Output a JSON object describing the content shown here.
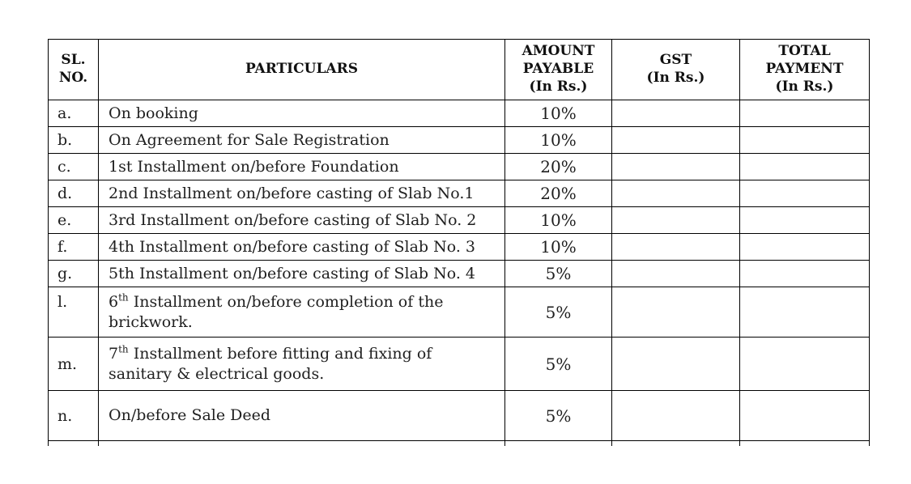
{
  "document": {
    "background_color": "#ffffff",
    "text_color": "#1f1f1f",
    "border_color": "#000000",
    "description": "Payment schedule table"
  },
  "table": {
    "headers": [
      {
        "name": "sl-no",
        "lines": [
          "SL.",
          "NO."
        ]
      },
      {
        "name": "particulars",
        "lines": [
          "PARTICULARS"
        ]
      },
      {
        "name": "amount-payable",
        "lines": [
          "AMOUNT",
          "PAYABLE",
          "(In Rs.)"
        ]
      },
      {
        "name": "gst",
        "lines": [
          "GST",
          "(In Rs.)"
        ]
      },
      {
        "name": "total-payment",
        "lines": [
          "TOTAL",
          "PAYMENT",
          "(In Rs.)"
        ]
      }
    ],
    "rows": [
      {
        "serial": "a.",
        "p_num": "",
        "p_sup": "",
        "p_text": "On booking",
        "amount": "10%",
        "gst": "",
        "total": ""
      },
      {
        "serial": "b.",
        "p_num": "",
        "p_sup": "",
        "p_text": "On Agreement for Sale Registration",
        "amount": "10%",
        "gst": "",
        "total": ""
      },
      {
        "serial": "c.",
        "p_num": "",
        "p_sup": "",
        "p_text": "1st Installment on/before Foundation",
        "amount": "20%",
        "gst": "",
        "total": ""
      },
      {
        "serial": "d.",
        "p_num": "",
        "p_sup": "",
        "p_text": "2nd Installment on/before casting of Slab No.1",
        "amount": "20%",
        "gst": "",
        "total": ""
      },
      {
        "serial": "e.",
        "p_num": "",
        "p_sup": "",
        "p_text": "3rd Installment on/before casting of Slab No. 2",
        "amount": "10%",
        "gst": "",
        "total": ""
      },
      {
        "serial": "f.",
        "p_num": "",
        "p_sup": "",
        "p_text": "4th Installment on/before casting of Slab No. 3",
        "amount": "10%",
        "gst": "",
        "total": ""
      },
      {
        "serial": "g.",
        "p_num": "",
        "p_sup": "",
        "p_text": "5th Installment on/before casting of Slab No. 4",
        "amount": "5%",
        "gst": "",
        "total": ""
      },
      {
        "serial": "l.",
        "p_num": "6",
        "p_sup": "th",
        "p_text": " Installment on/before completion of the brickwork.",
        "amount": "5%",
        "gst": "",
        "total": ""
      },
      {
        "serial": "m.",
        "p_num": "7",
        "p_sup": "th",
        "p_text": " Installment before fitting and fixing of sanitary & electrical goods.",
        "amount": "5%",
        "gst": "",
        "total": ""
      },
      {
        "serial": "n.",
        "p_num": "",
        "p_sup": "",
        "p_text": "On/before Sale Deed",
        "amount": "5%",
        "gst": "",
        "total": ""
      }
    ]
  }
}
